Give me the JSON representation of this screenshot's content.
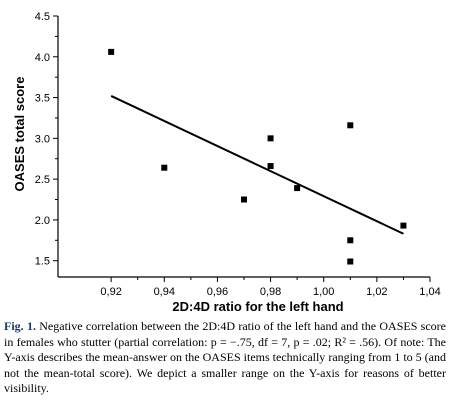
{
  "chart_data": {
    "type": "scatter",
    "title": "",
    "xlabel": "2D:4D ratio for the left hand",
    "ylabel": "OASES total score",
    "xlim": [
      0.9,
      1.04
    ],
    "ylim": [
      1.3,
      4.5
    ],
    "xticks": [
      0.92,
      0.94,
      0.96,
      0.98,
      1.0,
      1.02,
      1.04
    ],
    "xtick_labels": [
      "0,92",
      "0,94",
      "0,96",
      "0,98",
      "1,00",
      "1,02",
      "1,04"
    ],
    "yticks": [
      1.5,
      2.0,
      2.5,
      3.0,
      3.5,
      4.0,
      4.5
    ],
    "ytick_labels": [
      "1.5",
      "2.0",
      "2.5",
      "3.0",
      "3.5",
      "4.0",
      "4.5"
    ],
    "grid": false,
    "marker": "square",
    "points": [
      {
        "x": 0.92,
        "y": 4.06
      },
      {
        "x": 0.94,
        "y": 2.64
      },
      {
        "x": 0.97,
        "y": 2.25
      },
      {
        "x": 0.98,
        "y": 3.0
      },
      {
        "x": 0.98,
        "y": 2.66
      },
      {
        "x": 0.99,
        "y": 2.39
      },
      {
        "x": 1.01,
        "y": 3.16
      },
      {
        "x": 1.01,
        "y": 1.75
      },
      {
        "x": 1.01,
        "y": 1.49
      },
      {
        "x": 1.03,
        "y": 1.93
      }
    ],
    "trendline": {
      "x": [
        0.92,
        1.03
      ],
      "y": [
        3.52,
        1.83
      ]
    }
  },
  "caption": {
    "label": "Fig. 1.",
    "text": " Negative correlation between the 2D:4D ratio of the left hand and the OASES score in females who stutter (partial correlation: p = −.75, df = 7, p = .02; R² = .56). Of note: The Y-axis describes the mean-answer on the OASES items technically ranging from 1 to 5 (and not the mean-total score). We depict a smaller range on the Y-axis for reasons of better visibility."
  }
}
